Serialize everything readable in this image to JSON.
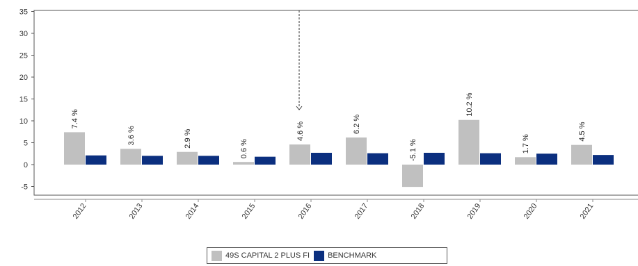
{
  "chart_data": {
    "type": "bar",
    "categories": [
      "2012",
      "2013",
      "2014",
      "2015",
      "2016",
      "2017",
      "2018",
      "2019",
      "2020",
      "2021"
    ],
    "series": [
      {
        "name": "49S CAPITAL 2 PLUS FI",
        "color": "#c0c0c0",
        "values": [
          7.4,
          3.6,
          2.9,
          0.6,
          4.6,
          6.2,
          -5.1,
          10.2,
          1.7,
          4.5
        ],
        "labels": [
          "7.4 %",
          "3.6 %",
          "2.9 %",
          "0.6 %",
          "4.6 %",
          "6.2 %",
          "-5.1 %",
          "10.2 %",
          "1.7 %",
          "4.5 %"
        ]
      },
      {
        "name": "BENCHMARK",
        "color": "#0b2f7f",
        "values": [
          2.1,
          2.0,
          2.0,
          1.8,
          2.7,
          2.6,
          2.7,
          2.6,
          2.5,
          2.2
        ]
      }
    ],
    "y_ticks": [
      "35",
      "30",
      "25",
      "20",
      "15",
      "10",
      "5",
      "0",
      "-5"
    ],
    "ylim": [
      -7,
      35
    ],
    "grid": false,
    "legend": "bottom-center",
    "marker": {
      "category": "2016",
      "style": "dashed vertical line with arrow"
    }
  }
}
